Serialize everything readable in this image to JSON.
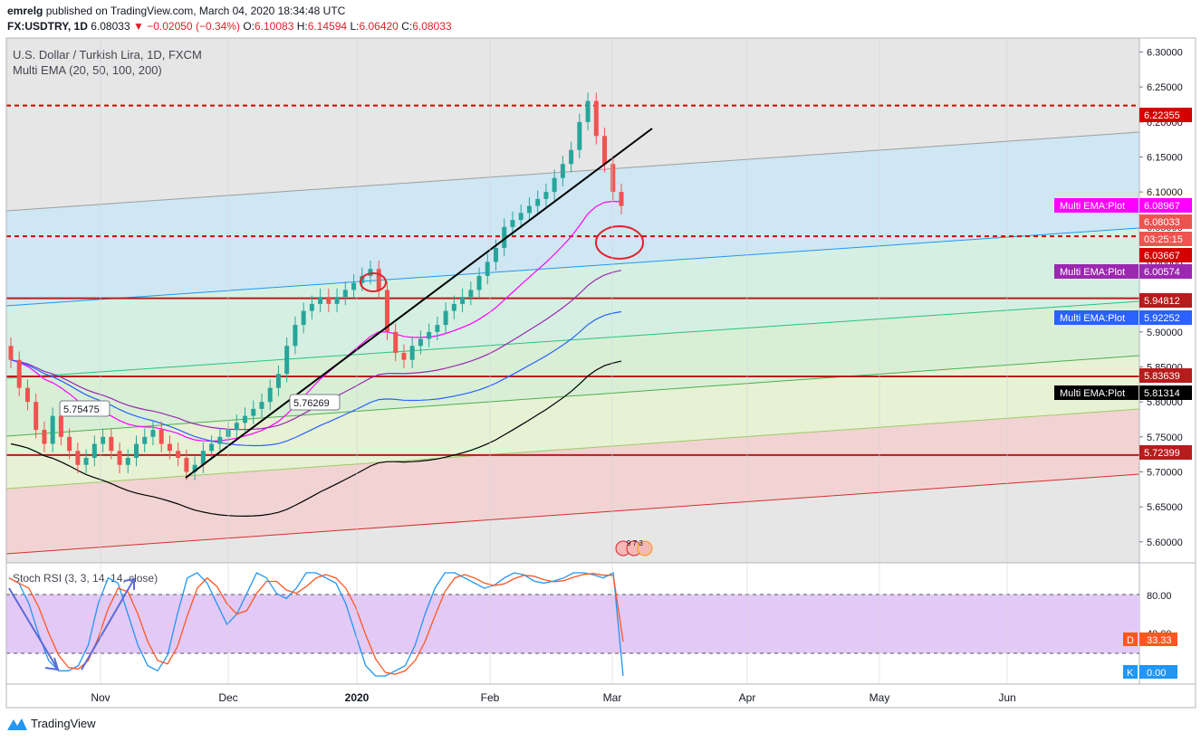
{
  "header": {
    "author": "emrelg",
    "published_text": "published on TradingView.com, March 04, 2020 18:34:48 UTC",
    "symbol_line": "FX:USDTRY, 1D",
    "last": "6.08033",
    "change": "−0.02050 (−0.34%)",
    "open_label": "O:",
    "open": "6.10083",
    "high_label": "H:",
    "high": "6.14594",
    "low_label": "L:",
    "low": "6.06420",
    "close_label": "C:",
    "close": "6.08033"
  },
  "legend": {
    "title": "U.S. Dollar / Turkish Lira, 1D, FXCM",
    "indicator": "Multi EMA (20, 50, 100, 200)",
    "stoch_title": "Stoch RSI (3, 3, 14, 14, close)"
  },
  "annotations": {
    "left_price": "5.75475",
    "mid_price": "5.76269",
    "event_badge": "9 7 3"
  },
  "price_axis": {
    "ticks": [
      "6.30000",
      "6.25000",
      "6.20000",
      "6.15000",
      "6.10000",
      "6.05000",
      "6.00000",
      "5.95000",
      "5.90000",
      "5.85000",
      "5.80000",
      "5.75000",
      "5.70000",
      "5.65000",
      "5.60000"
    ]
  },
  "price_labels": [
    {
      "text": "6.22355",
      "color": "#d50000"
    },
    {
      "text": "Multi EMA:Plot",
      "value": "6.08967",
      "color": "#ff00ff"
    },
    {
      "text": "6.08033",
      "color": "#ef5350"
    },
    {
      "text": "03:25:15",
      "color": "#ef5350"
    },
    {
      "text": "6.03667",
      "color": "#d50000"
    },
    {
      "text": "Multi EMA:Plot",
      "value": "6.00574",
      "color": "#9c27b0"
    },
    {
      "text": "5.94812",
      "color": "#b71c1c"
    },
    {
      "text": "Multi EMA:Plot",
      "value": "5.92252",
      "color": "#2962ff"
    },
    {
      "text": "5.83639",
      "color": "#b71c1c"
    },
    {
      "text": "Multi EMA:Plot",
      "value": "5.81314",
      "color": "#000000"
    },
    {
      "text": "5.72399",
      "color": "#b71c1c"
    }
  ],
  "stoch_axis": {
    "ticks": [
      "80.00",
      "40.00"
    ],
    "d_label": "D",
    "d_value": "33.33",
    "k_label": "K",
    "k_value": "0.00"
  },
  "time_axis": {
    "ticks": [
      "Nov",
      "Dec",
      "2020",
      "Feb",
      "Mar",
      "Apr",
      "May",
      "Jun"
    ]
  },
  "footer": {
    "brand": "TradingView"
  },
  "colors": {
    "up": "#26a69a",
    "down": "#ef5350",
    "ema20": "#ff00ff",
    "ema50": "#9c27b0",
    "ema100": "#2962ff",
    "ema200": "#000000",
    "stoch_k": "#2196f3",
    "stoch_d": "#ff5722"
  },
  "chart_data": {
    "type": "candlestick",
    "title": "U.S. Dollar / Turkish Lira, 1D, FXCM",
    "ylim": [
      5.57,
      6.32
    ],
    "x_labels": [
      "Nov",
      "Dec",
      "2020",
      "Feb",
      "Mar",
      "Apr",
      "May",
      "Jun"
    ],
    "candles_close": [
      5.86,
      5.82,
      5.8,
      5.76,
      5.74,
      5.78,
      5.75,
      5.73,
      5.71,
      5.72,
      5.74,
      5.75,
      5.73,
      5.71,
      5.72,
      5.74,
      5.75,
      5.76,
      5.74,
      5.73,
      5.72,
      5.7,
      5.71,
      5.73,
      5.74,
      5.75,
      5.76,
      5.77,
      5.78,
      5.79,
      5.8,
      5.82,
      5.84,
      5.88,
      5.91,
      5.93,
      5.94,
      5.95,
      5.94,
      5.95,
      5.96,
      5.97,
      5.98,
      5.99,
      5.96,
      5.9,
      5.87,
      5.86,
      5.88,
      5.89,
      5.9,
      5.91,
      5.93,
      5.94,
      5.95,
      5.96,
      5.98,
      6.0,
      6.02,
      6.05,
      6.06,
      6.07,
      6.08,
      6.09,
      6.1,
      6.12,
      6.14,
      6.16,
      6.2,
      6.23,
      6.18,
      6.14,
      6.1,
      6.08
    ],
    "horizontal_levels": [
      6.22355,
      6.03667,
      5.94812,
      5.83639,
      5.72399
    ],
    "ema_last": {
      "ema20": 6.08967,
      "ema50": 6.00574,
      "ema100": 5.92252,
      "ema200": 5.81314
    },
    "stoch_rsi": {
      "k_last": 0.0,
      "d_last": 33.33,
      "levels": [
        80,
        20
      ]
    }
  }
}
